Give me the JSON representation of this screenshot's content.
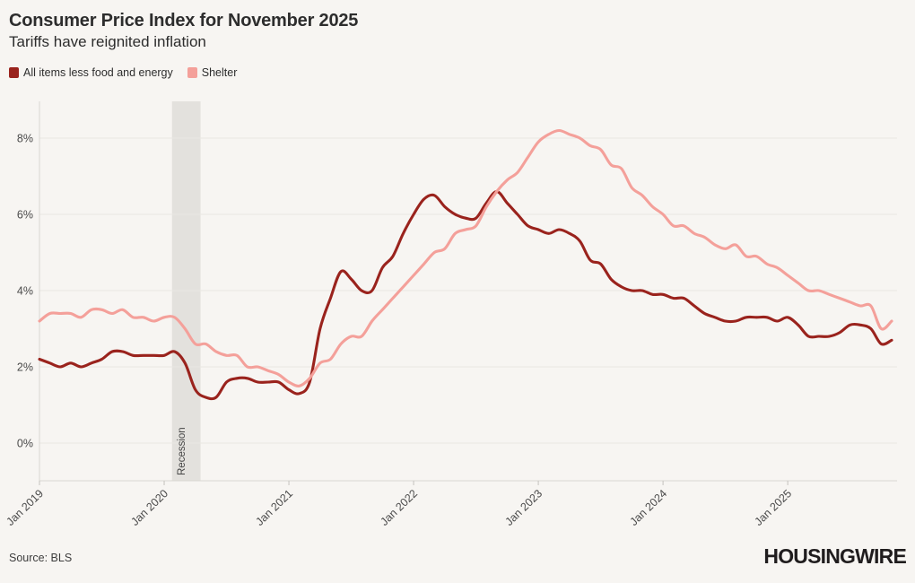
{
  "colors": {
    "background": "#f7f5f2",
    "grid": "#eae8e3",
    "axis": "#d8d6d1",
    "tick": "#c4c2bd",
    "tick_text": "#4a4a4a",
    "recession_band": "#e3e1dd",
    "recession_text": "#454545",
    "title_text": "#2d2d2d"
  },
  "footer": {
    "source_label": "Source: BLS",
    "brand": "HOUSINGWIRE"
  },
  "chart_data": {
    "type": "line",
    "title": "Consumer Price Index for November 2025",
    "subtitle": "Tariffs have reignited inflation",
    "frequency": "monthly",
    "x_start": "Jan 2019",
    "x_end": "Nov 2025",
    "x_tick_labels": [
      "Jan 2019",
      "Jan 2020",
      "Jan 2021",
      "Jan 2022",
      "Jan 2023",
      "Jan 2024",
      "Jan 2025"
    ],
    "x_tick_month_indices": [
      0,
      12,
      24,
      36,
      48,
      60,
      72
    ],
    "y_ticks": [
      0,
      2,
      4,
      6,
      8
    ],
    "y_tick_suffix": "%",
    "ylim": [
      -1.0,
      8.95
    ],
    "grid": "horizontal",
    "legend_position": "top-left",
    "recession_band": {
      "label": "Recession",
      "start": "Feb 2020",
      "end": "Apr 2020",
      "start_month_index": 12.75,
      "end_month_index": 15.5
    },
    "series": [
      {
        "name": "All items less food and energy",
        "color": "#9a231d",
        "values": [
          2.2,
          2.1,
          2.0,
          2.1,
          2.0,
          2.1,
          2.2,
          2.4,
          2.4,
          2.3,
          2.3,
          2.3,
          2.3,
          2.4,
          2.1,
          1.4,
          1.2,
          1.2,
          1.6,
          1.7,
          1.7,
          1.6,
          1.6,
          1.6,
          1.4,
          1.3,
          1.6,
          3.0,
          3.8,
          4.5,
          4.3,
          4.0,
          4.0,
          4.6,
          4.9,
          5.5,
          6.0,
          6.4,
          6.5,
          6.2,
          6.0,
          5.9,
          5.9,
          6.3,
          6.6,
          6.3,
          6.0,
          5.7,
          5.6,
          5.5,
          5.6,
          5.5,
          5.3,
          4.8,
          4.7,
          4.3,
          4.1,
          4.0,
          4.0,
          3.9,
          3.9,
          3.8,
          3.8,
          3.6,
          3.4,
          3.3,
          3.2,
          3.2,
          3.3,
          3.3,
          3.3,
          3.2,
          3.3,
          3.1,
          2.8,
          2.8,
          2.8,
          2.9,
          3.1,
          3.1,
          3.0,
          2.6,
          2.7
        ]
      },
      {
        "name": "Shelter",
        "color": "#f4a09a",
        "values": [
          3.2,
          3.4,
          3.4,
          3.4,
          3.3,
          3.5,
          3.5,
          3.4,
          3.5,
          3.3,
          3.3,
          3.2,
          3.3,
          3.3,
          3.0,
          2.6,
          2.6,
          2.4,
          2.3,
          2.3,
          2.0,
          2.0,
          1.9,
          1.8,
          1.6,
          1.5,
          1.7,
          2.1,
          2.2,
          2.6,
          2.8,
          2.8,
          3.2,
          3.5,
          3.8,
          4.1,
          4.4,
          4.7,
          5.0,
          5.1,
          5.5,
          5.6,
          5.7,
          6.2,
          6.6,
          6.9,
          7.1,
          7.5,
          7.9,
          8.1,
          8.2,
          8.1,
          8.0,
          7.8,
          7.7,
          7.3,
          7.2,
          6.7,
          6.5,
          6.2,
          6.0,
          5.7,
          5.7,
          5.5,
          5.4,
          5.2,
          5.1,
          5.2,
          4.9,
          4.9,
          4.7,
          4.6,
          4.4,
          4.2,
          4.0,
          4.0,
          3.9,
          3.8,
          3.7,
          3.6,
          3.6,
          3.0,
          3.2
        ]
      }
    ]
  }
}
